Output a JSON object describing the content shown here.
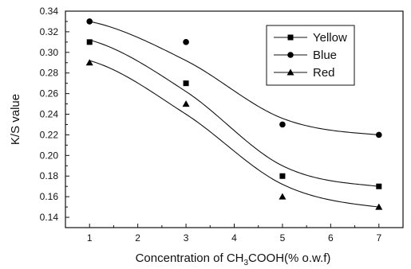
{
  "chart_data": {
    "type": "scatter",
    "x": [
      1,
      3,
      5,
      7
    ],
    "series": [
      {
        "name": "Yellow",
        "marker": "square",
        "values": [
          0.31,
          0.27,
          0.18,
          0.17
        ],
        "fit": [
          0.312,
          0.262,
          0.19,
          0.17
        ]
      },
      {
        "name": "Blue",
        "marker": "circle",
        "values": [
          0.33,
          0.31,
          0.23,
          0.22
        ],
        "fit": [
          0.33,
          0.292,
          0.236,
          0.22
        ]
      },
      {
        "name": "Red",
        "marker": "triangle",
        "values": [
          0.29,
          0.25,
          0.16,
          0.15
        ],
        "fit": [
          0.292,
          0.24,
          0.172,
          0.15
        ]
      }
    ],
    "xlabel_main": "Concentration of CH",
    "xlabel_sub1": "3",
    "xlabel_mid": "COOH",
    "xlabel_end": "(% o.w.f)",
    "ylabel": "K/S value",
    "xlim": [
      0.5,
      7.5
    ],
    "ylim": [
      0.13,
      0.34
    ],
    "xticks": [
      "1",
      "2",
      "3",
      "4",
      "5",
      "6",
      "7"
    ],
    "yticks": [
      "0.14",
      "0.16",
      "0.18",
      "0.20",
      "0.22",
      "0.24",
      "0.26",
      "0.28",
      "0.30",
      "0.32",
      "0.34"
    ],
    "legend_position": "top-right",
    "grid": false,
    "colors": {
      "line": "#111111",
      "marker": "#000000"
    }
  }
}
